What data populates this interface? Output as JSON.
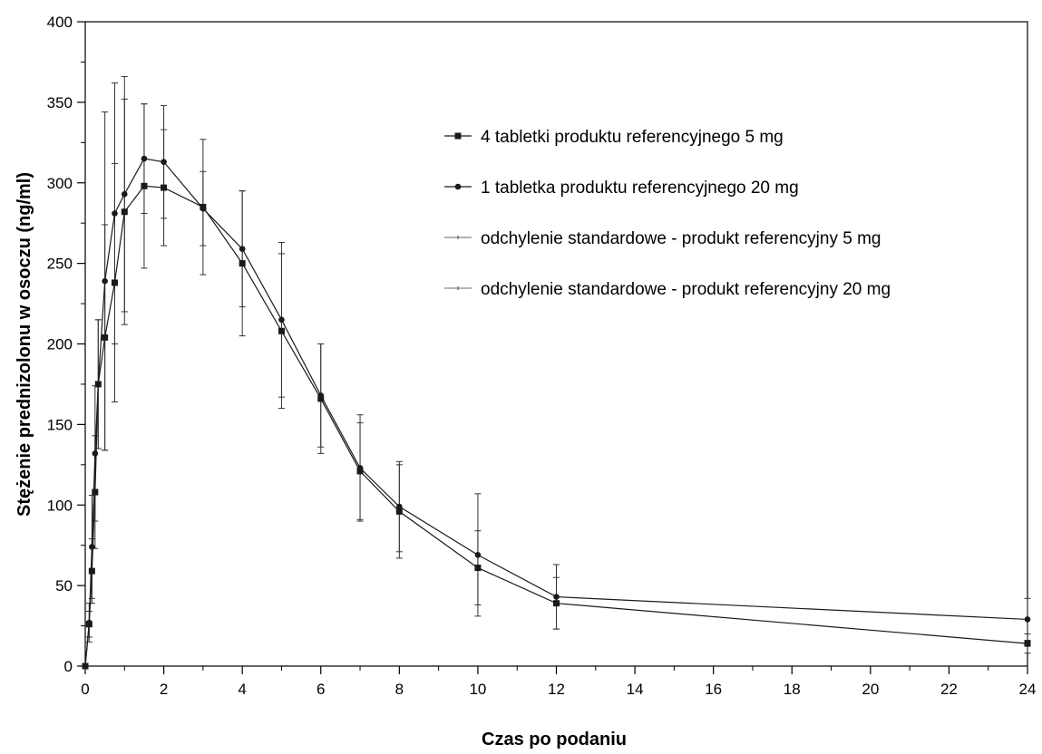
{
  "chart_data": {
    "type": "line",
    "title": "",
    "xlabel": "Czas po podaniu",
    "ylabel": "Stężenie prednizolonu w osoczu (ng/ml)",
    "xlim": [
      0,
      24
    ],
    "ylim": [
      0,
      400
    ],
    "x_ticks": [
      0,
      2,
      4,
      6,
      8,
      10,
      12,
      14,
      16,
      18,
      20,
      22,
      24
    ],
    "y_ticks": [
      0,
      50,
      100,
      150,
      200,
      250,
      300,
      350,
      400
    ],
    "grid": false,
    "legend_position": "top-right",
    "x": [
      0,
      0.1,
      0.17,
      0.25,
      0.33,
      0.5,
      0.75,
      1,
      1.5,
      2,
      3,
      4,
      5,
      6,
      7,
      8,
      10,
      12,
      24
    ],
    "series": [
      {
        "name": "4 tabletki produktu referencyjnego 5 mg",
        "marker": "square",
        "values": [
          0,
          26,
          59,
          108,
          175,
          204,
          238,
          282,
          298,
          297,
          285,
          250,
          208,
          166,
          121,
          96,
          61,
          39,
          14
        ],
        "sd": [
          0,
          8,
          20,
          35,
          40,
          70,
          74,
          70,
          51,
          36,
          42,
          45,
          48,
          34,
          30,
          29,
          23,
          16,
          6
        ]
      },
      {
        "name": "1 tabletka produktu referencyjnego  20 mg",
        "marker": "circle",
        "values": [
          0,
          27,
          74,
          132,
          175,
          239,
          281,
          293,
          315,
          313,
          284,
          259,
          215,
          168,
          123,
          99,
          69,
          43,
          29
        ],
        "sd": [
          0,
          12,
          32,
          42,
          40,
          105,
          81,
          73,
          34,
          35,
          23,
          36,
          48,
          32,
          33,
          28,
          38,
          20,
          13
        ]
      }
    ],
    "legend": [
      {
        "label": "4 tabletki produktu referencyjnego 5 mg",
        "symbol": "square"
      },
      {
        "label": "1 tabletka produktu referencyjnego  20 mg",
        "symbol": "circle"
      },
      {
        "label": "odchylenie standardowe  - produkt referencyjny 5 mg",
        "symbol": "errorbar"
      },
      {
        "label": "odchylenie standardowe - produkt referencyjny 20 mg",
        "symbol": "errorbar"
      }
    ],
    "colors": {
      "line": "#1a1a1a",
      "errorbar": "#333333",
      "axis": "#000000"
    }
  }
}
